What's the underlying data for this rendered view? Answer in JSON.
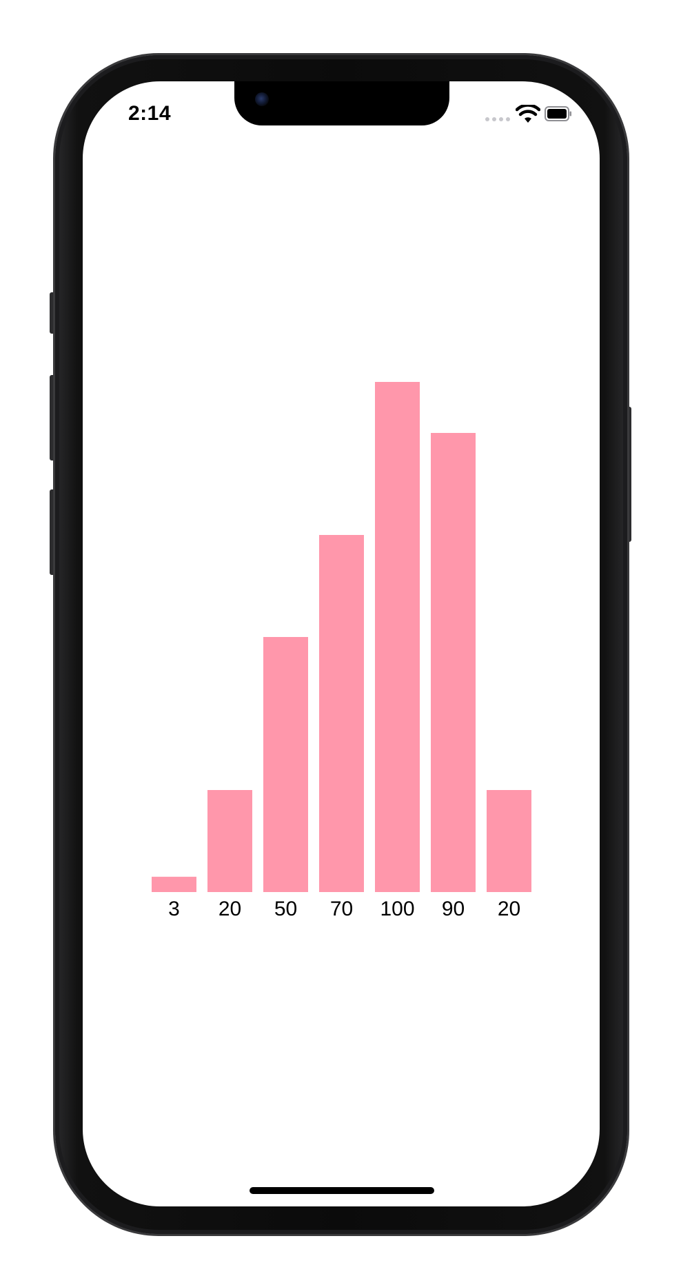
{
  "status_bar": {
    "time": "2:14"
  },
  "icons": {
    "wifi": "wifi-icon",
    "battery": "battery-icon",
    "signal": "cellular-signal-icon"
  },
  "colors": {
    "bar": "#ff97ab",
    "label": "#000000"
  },
  "chart_data": {
    "type": "bar",
    "categories": [
      "3",
      "20",
      "50",
      "70",
      "100",
      "90",
      "20"
    ],
    "values": [
      3,
      20,
      50,
      70,
      100,
      90,
      20
    ],
    "title": "",
    "xlabel": "",
    "ylabel": "",
    "ylim": [
      0,
      100
    ],
    "grid": false,
    "legend": "none"
  }
}
